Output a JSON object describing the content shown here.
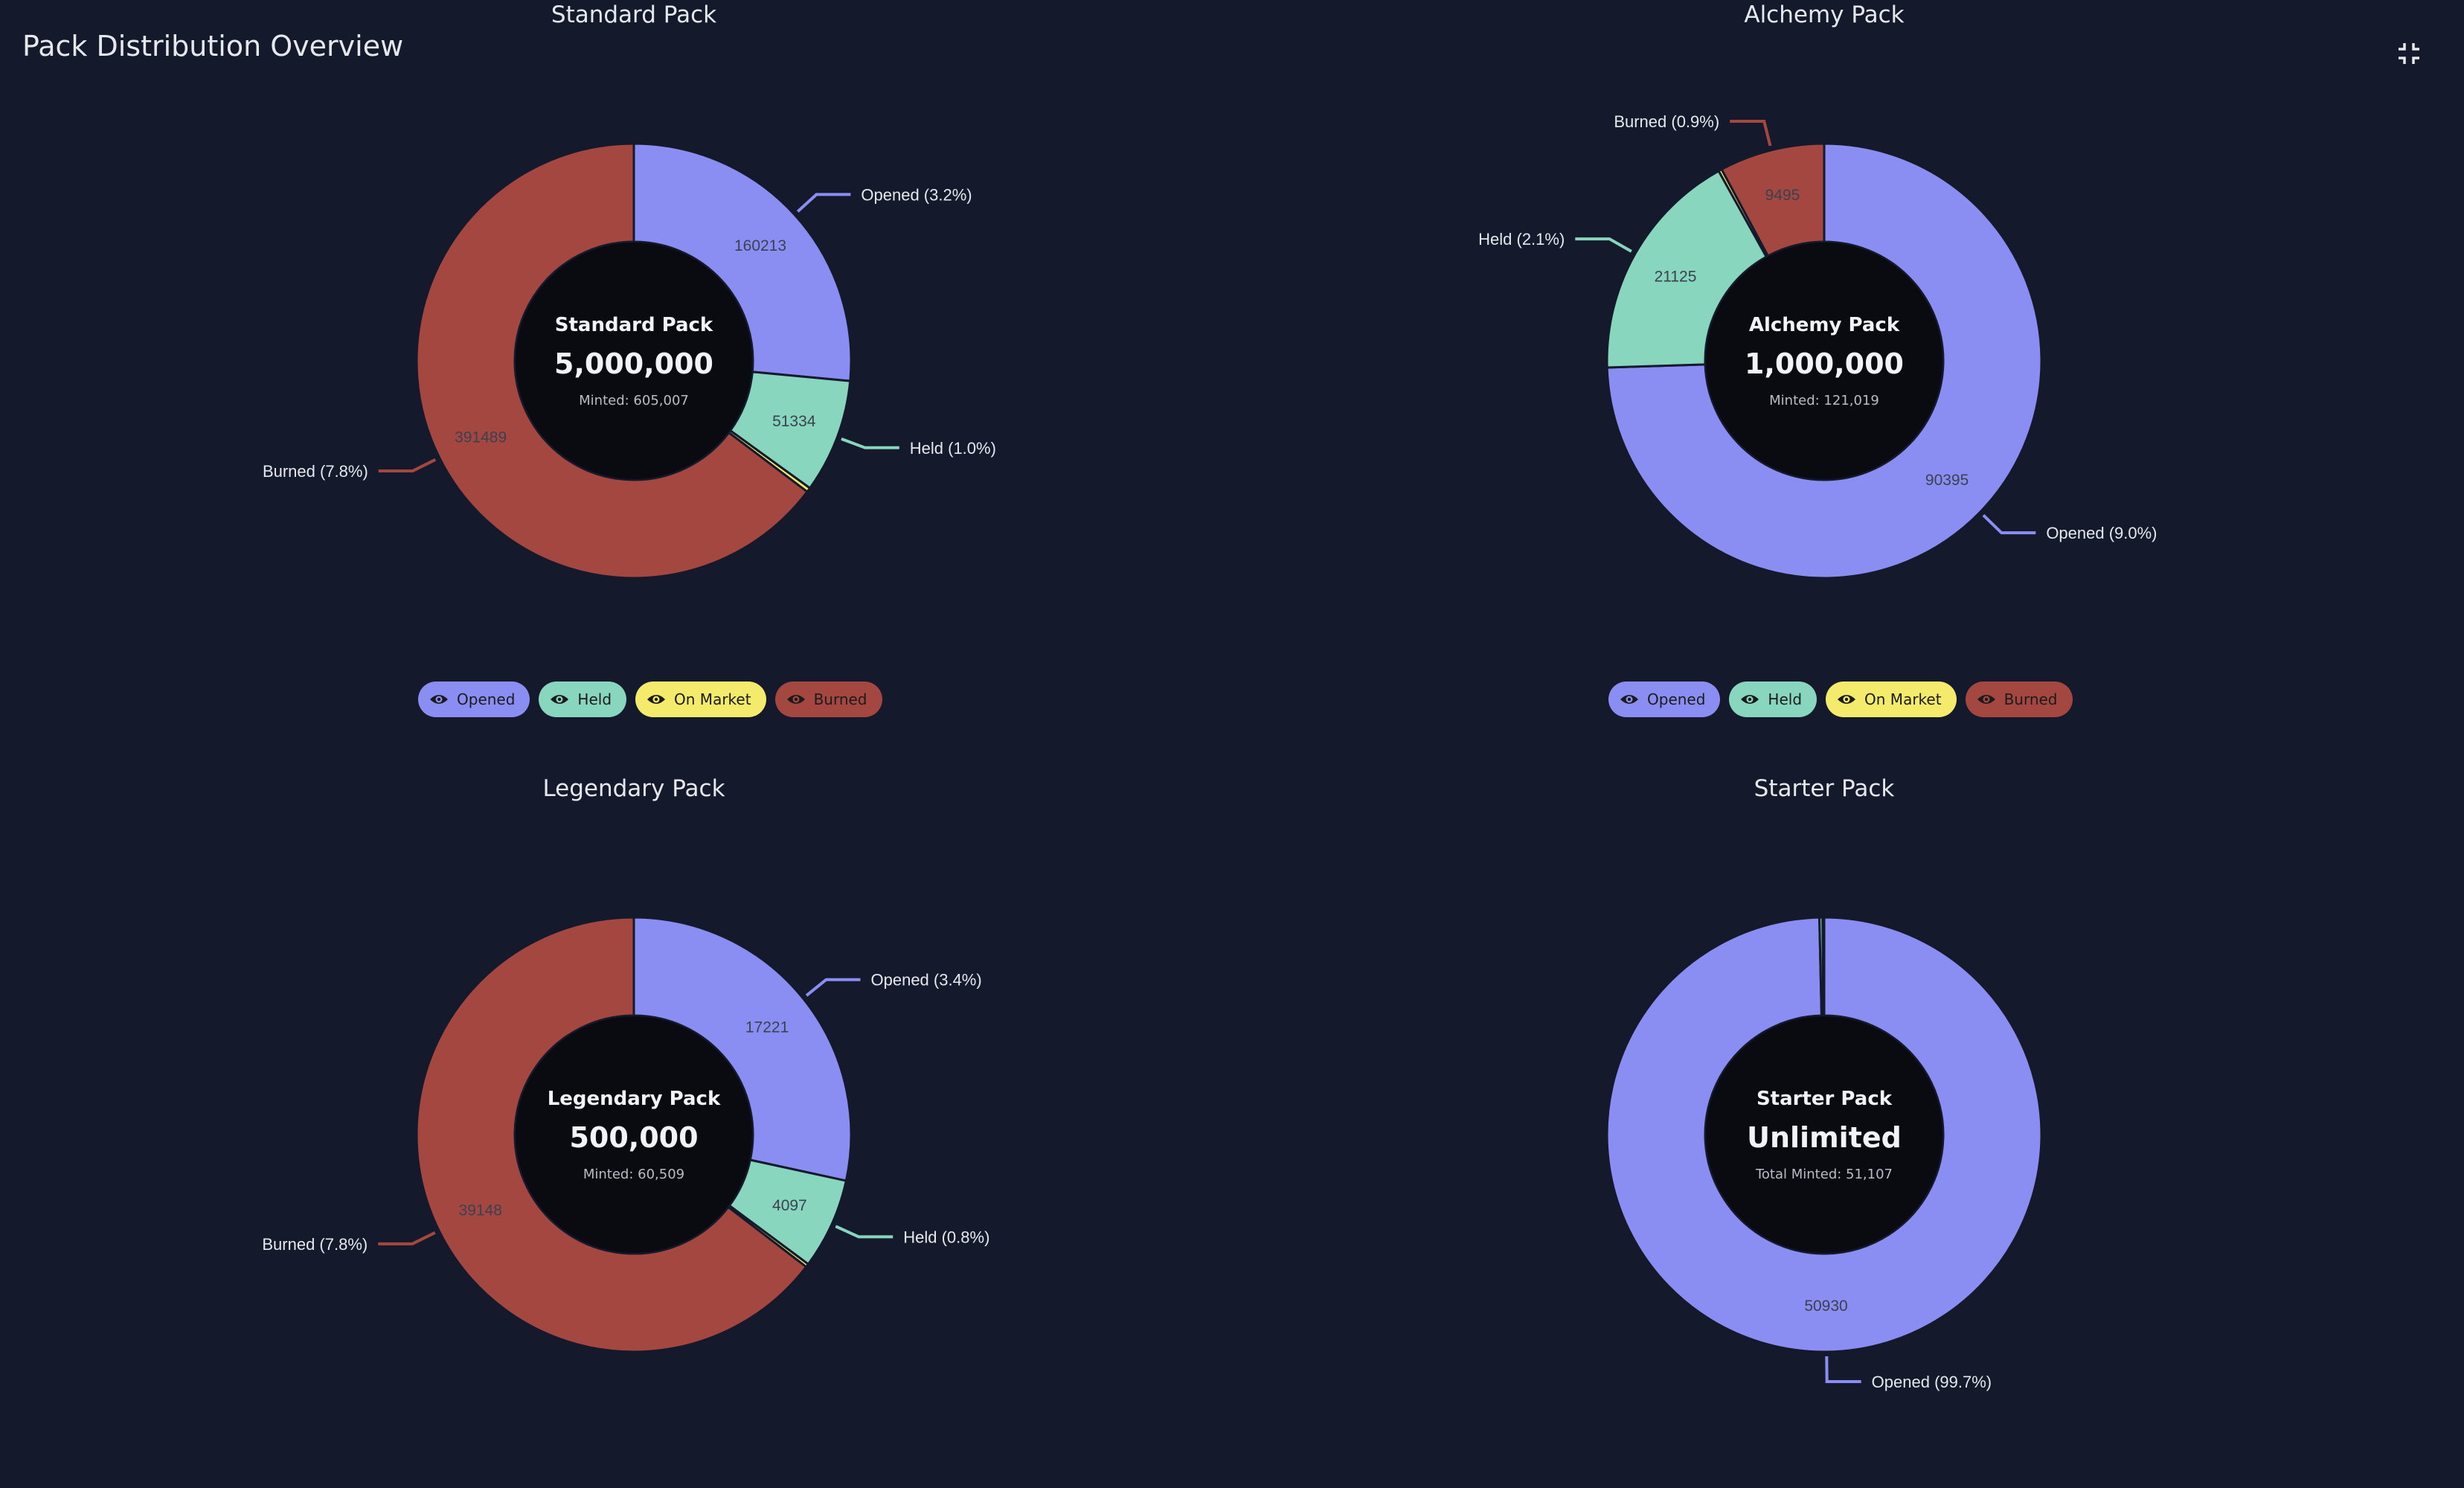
{
  "page": {
    "title": "Pack Distribution Overview",
    "collapse_icon": "collapse-icon"
  },
  "colors": {
    "Opened": "#8a8ef2",
    "Held": "#87d6bd",
    "On Market": "#f4ea6c",
    "Burned": "#a34740",
    "background": "#141a2b",
    "center": "#0a0b10"
  },
  "legend": {
    "items": [
      "Opened",
      "Held",
      "On Market",
      "Burned"
    ],
    "icon": "eye-icon"
  },
  "chart_data": [
    {
      "type": "pie",
      "title": "Standard Pack",
      "center": {
        "title": "Standard Pack",
        "value": "5,000,000",
        "sub": "Minted: 605,007"
      },
      "categories": [
        "Opened",
        "Held",
        "On Market",
        "Burned"
      ],
      "values": [
        160213,
        51334,
        2000,
        391489
      ],
      "value_labels": [
        "160213",
        "51334",
        "",
        "391489"
      ],
      "outer_labels": [
        "Opened (3.2%)",
        "Held (1.0%)",
        "",
        "Burned (7.8%)"
      ]
    },
    {
      "type": "pie",
      "title": "Alchemy Pack",
      "center": {
        "title": "Alchemy Pack",
        "value": "1,000,000",
        "sub": "Minted: 121,019"
      },
      "categories": [
        "Opened",
        "Held",
        "On Market",
        "Burned"
      ],
      "values": [
        90395,
        21125,
        300,
        9495
      ],
      "value_labels": [
        "90395",
        "21125",
        "",
        "9495"
      ],
      "outer_labels": [
        "Opened (9.0%)",
        "Held (2.1%)",
        "",
        "Burned (0.9%)"
      ]
    },
    {
      "type": "pie",
      "title": "Legendary Pack",
      "center": {
        "title": "Legendary Pack",
        "value": "500,000",
        "sub": "Minted: 60,509"
      },
      "categories": [
        "Opened",
        "Held",
        "On Market",
        "Burned"
      ],
      "values": [
        17221,
        4097,
        150,
        39148
      ],
      "value_labels": [
        "17221",
        "4097",
        "",
        "39148"
      ],
      "outer_labels": [
        "Opened (3.4%)",
        "Held (0.8%)",
        "",
        "Burned (7.8%)"
      ]
    },
    {
      "type": "pie",
      "title": "Starter Pack",
      "center": {
        "title": "Starter Pack",
        "value": "Unlimited",
        "sub": "Total Minted: 51,107"
      },
      "categories": [
        "Opened",
        "Held",
        "On Market",
        "Burned"
      ],
      "values": [
        50930,
        120,
        20,
        40
      ],
      "value_labels": [
        "50930",
        "",
        "",
        ""
      ],
      "outer_labels": [
        "Opened (99.7%)",
        "",
        "",
        ""
      ]
    }
  ]
}
